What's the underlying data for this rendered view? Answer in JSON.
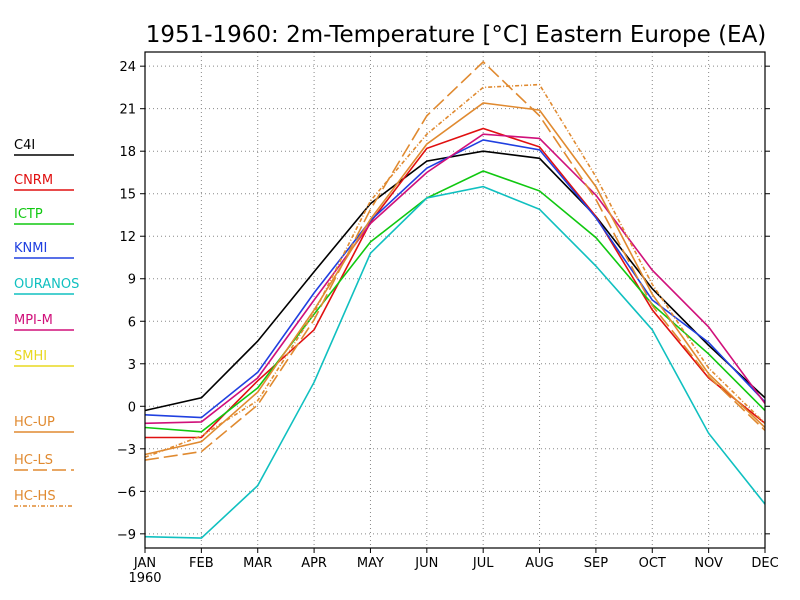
{
  "chart_data": {
    "type": "line",
    "title": "1951-1960: 2m-Temperature [°C] Eastern Europe (EA)",
    "x_tick_labels": [
      "JAN",
      "FEB",
      "MAR",
      "APR",
      "MAY",
      "JUN",
      "JUL",
      "AUG",
      "SEP",
      "OCT",
      "NOV",
      "DEC"
    ],
    "x_year_label": "1960",
    "y_ticks": [
      -9,
      -6,
      -3,
      0,
      3,
      6,
      9,
      12,
      15,
      18,
      21,
      24
    ],
    "ylim": [
      -10,
      25
    ],
    "grid": true,
    "legend_position": "left",
    "series": [
      {
        "name": "C4I",
        "color": "#000000",
        "dash": "solid",
        "values": [
          -0.3,
          0.6,
          4.6,
          9.5,
          14.3,
          17.3,
          18.0,
          17.5,
          13.4,
          8.3,
          4.3,
          0.6
        ]
      },
      {
        "name": "CNRM",
        "color": "#e01010",
        "dash": "solid",
        "values": [
          -2.2,
          -2.2,
          1.8,
          5.4,
          13.0,
          18.2,
          19.6,
          18.3,
          13.4,
          6.8,
          2.0,
          -1.2
        ]
      },
      {
        "name": "ICTP",
        "color": "#10c810",
        "dash": "solid",
        "values": [
          -1.5,
          -1.8,
          1.3,
          6.5,
          11.6,
          14.7,
          16.6,
          15.2,
          11.9,
          7.2,
          3.7,
          -0.3
        ]
      },
      {
        "name": "KNMI",
        "color": "#2040e0",
        "dash": "solid",
        "values": [
          -0.6,
          -0.8,
          2.4,
          8.0,
          13.1,
          16.8,
          18.8,
          18.1,
          13.3,
          7.5,
          4.5,
          0.3
        ]
      },
      {
        "name": "OURANOS",
        "color": "#10c0c0",
        "dash": "solid",
        "values": [
          -9.2,
          -9.3,
          -5.6,
          1.7,
          10.8,
          14.7,
          15.5,
          13.9,
          9.9,
          5.4,
          -1.9,
          -6.9
        ]
      },
      {
        "name": "MPI-M",
        "color": "#d0107a",
        "dash": "solid",
        "values": [
          -1.2,
          -1.1,
          2.0,
          7.5,
          12.9,
          16.5,
          19.2,
          18.9,
          14.9,
          9.6,
          5.6,
          0.2
        ]
      },
      {
        "name": "SMHI",
        "color": "#e8d820",
        "dash": "solid",
        "values": []
      },
      {
        "name": "HC-UP",
        "color": "#e08a30",
        "dash": "solid",
        "values": [
          -3.4,
          -2.5,
          1.0,
          6.8,
          13.2,
          18.5,
          21.4,
          20.9,
          15.5,
          7.9,
          2.3,
          -1.5
        ]
      },
      {
        "name": "HC-LS",
        "color": "#e08a30",
        "dash": "longdash",
        "values": [
          -3.8,
          -3.2,
          0.1,
          6.1,
          13.9,
          20.5,
          24.3,
          20.5,
          14.6,
          7.1,
          2.1,
          -1.7
        ]
      },
      {
        "name": "HC-HS",
        "color": "#e08a30",
        "dash": "dotdash",
        "values": [
          -3.6,
          -2.1,
          0.4,
          6.6,
          14.5,
          19.2,
          22.5,
          22.7,
          16.2,
          8.6,
          2.7,
          -1.2
        ]
      }
    ]
  }
}
